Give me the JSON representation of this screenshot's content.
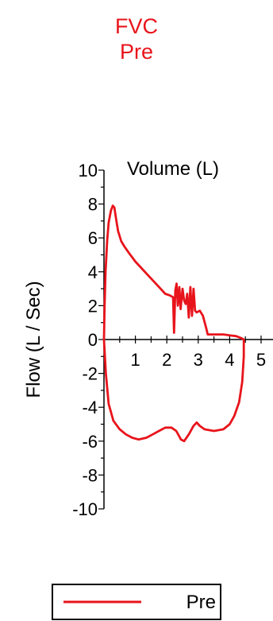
{
  "chart_data": {
    "type": "line",
    "title": "FVC",
    "subtitle": "Pre",
    "xlabel": "Volume (L)",
    "ylabel": "Flow (L / Sec)",
    "xlim": [
      0,
      5
    ],
    "ylim": [
      -10,
      10
    ],
    "x_ticks": [
      "1",
      "2",
      "3",
      "4",
      "5"
    ],
    "y_ticks": [
      "10",
      "8",
      "6",
      "4",
      "2",
      "0",
      "-2",
      "-4",
      "-6",
      "-8",
      "-10"
    ],
    "legend": {
      "position": "bottom",
      "entries": [
        "Pre"
      ]
    },
    "series_color": "#e8141b",
    "series": [
      {
        "name": "Pre",
        "points": [
          [
            0.0,
            0.0
          ],
          [
            0.02,
            2.0
          ],
          [
            0.05,
            4.0
          ],
          [
            0.1,
            5.8
          ],
          [
            0.15,
            6.9
          ],
          [
            0.22,
            7.6
          ],
          [
            0.28,
            7.9
          ],
          [
            0.33,
            7.8
          ],
          [
            0.38,
            7.2
          ],
          [
            0.45,
            6.4
          ],
          [
            0.55,
            5.8
          ],
          [
            0.65,
            5.5
          ],
          [
            0.8,
            5.1
          ],
          [
            1.0,
            4.6
          ],
          [
            1.2,
            4.2
          ],
          [
            1.4,
            3.8
          ],
          [
            1.6,
            3.4
          ],
          [
            1.8,
            3.0
          ],
          [
            1.95,
            2.7
          ],
          [
            2.1,
            2.6
          ],
          [
            2.2,
            2.5
          ],
          [
            2.23,
            0.4
          ],
          [
            2.27,
            2.9
          ],
          [
            2.31,
            3.3
          ],
          [
            2.35,
            2.0
          ],
          [
            2.4,
            3.1
          ],
          [
            2.44,
            1.8
          ],
          [
            2.5,
            3.0
          ],
          [
            2.55,
            2.3
          ],
          [
            2.6,
            2.1
          ],
          [
            2.65,
            2.7
          ],
          [
            2.7,
            1.3
          ],
          [
            2.75,
            3.1
          ],
          [
            2.8,
            1.4
          ],
          [
            2.85,
            3.0
          ],
          [
            2.9,
            1.7
          ],
          [
            2.95,
            1.6
          ],
          [
            3.05,
            1.7
          ],
          [
            3.15,
            1.4
          ],
          [
            3.25,
            0.7
          ],
          [
            3.3,
            0.3
          ],
          [
            3.4,
            0.3
          ],
          [
            3.6,
            0.3
          ],
          [
            3.8,
            0.3
          ],
          [
            4.0,
            0.25
          ],
          [
            4.2,
            0.2
          ],
          [
            4.35,
            0.1
          ],
          [
            4.45,
            0.0
          ],
          [
            4.45,
            -1.0
          ],
          [
            4.4,
            -2.5
          ],
          [
            4.3,
            -3.7
          ],
          [
            4.15,
            -4.5
          ],
          [
            4.0,
            -5.0
          ],
          [
            3.8,
            -5.3
          ],
          [
            3.5,
            -5.4
          ],
          [
            3.2,
            -5.3
          ],
          [
            3.05,
            -5.1
          ],
          [
            2.95,
            -4.9
          ],
          [
            2.85,
            -5.1
          ],
          [
            2.7,
            -5.6
          ],
          [
            2.55,
            -6.0
          ],
          [
            2.45,
            -5.9
          ],
          [
            2.3,
            -5.4
          ],
          [
            2.15,
            -5.2
          ],
          [
            1.95,
            -5.2
          ],
          [
            1.75,
            -5.4
          ],
          [
            1.55,
            -5.6
          ],
          [
            1.35,
            -5.8
          ],
          [
            1.1,
            -5.9
          ],
          [
            0.9,
            -5.8
          ],
          [
            0.7,
            -5.6
          ],
          [
            0.5,
            -5.3
          ],
          [
            0.3,
            -4.8
          ],
          [
            0.15,
            -3.8
          ],
          [
            0.06,
            -2.0
          ],
          [
            0.0,
            0.0
          ]
        ]
      }
    ]
  }
}
